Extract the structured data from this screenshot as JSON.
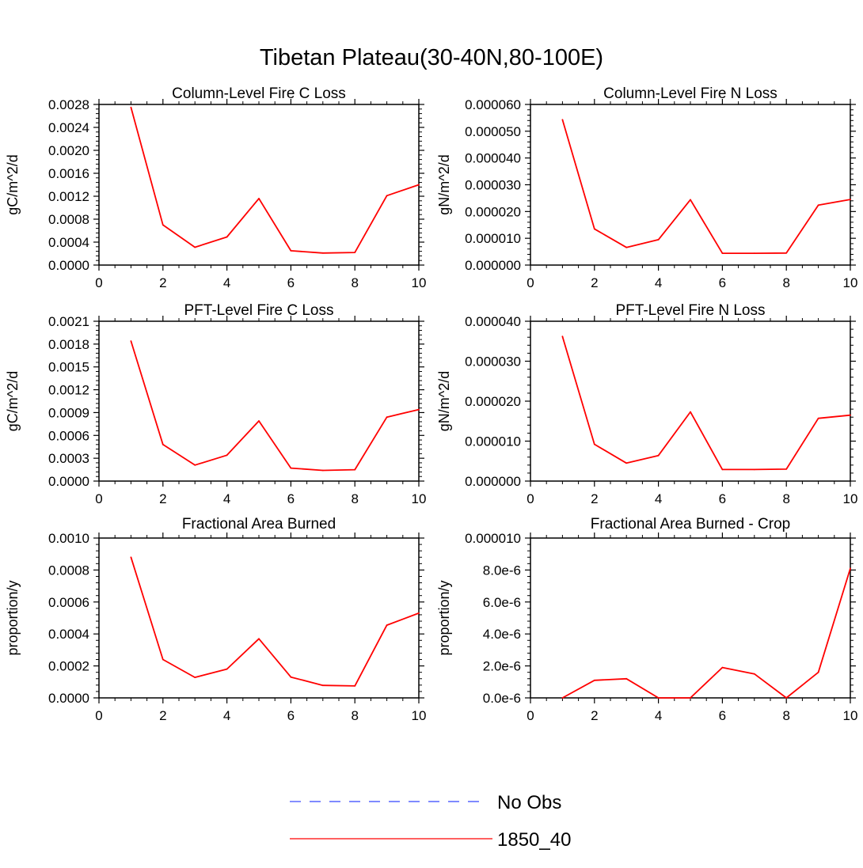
{
  "title": "Tibetan Plateau(30-40N,80-100E)",
  "legend": {
    "entries": [
      {
        "label": "No Obs",
        "color": "#3344ff",
        "style": "dashed"
      },
      {
        "label": "1850_40",
        "color": "#ff0000",
        "style": "solid"
      }
    ]
  },
  "chart_data": [
    {
      "type": "line",
      "title": "Column-Level Fire C Loss",
      "ylabel": "gC/m^2/d",
      "xlabel": "",
      "xlim": [
        0,
        10
      ],
      "ylim": [
        0,
        0.0028
      ],
      "x_ticks": [
        "0",
        "2",
        "4",
        "6",
        "8",
        "10"
      ],
      "y_ticks": [
        "0.0000",
        "0.0004",
        "0.0008",
        "0.0012",
        "0.0016",
        "0.0020",
        "0.0024",
        "0.0028"
      ],
      "series": [
        {
          "name": "1850_40",
          "color": "#ff0000",
          "x": [
            1,
            2,
            3,
            4,
            5,
            6,
            7,
            8,
            9,
            10
          ],
          "values": [
            0.00275,
            0.0007,
            0.00031,
            0.00049,
            0.00116,
            0.00025,
            0.00021,
            0.00022,
            0.00121,
            0.0014
          ]
        }
      ]
    },
    {
      "type": "line",
      "title": "Column-Level Fire N Loss",
      "ylabel": "gN/m^2/d",
      "xlabel": "",
      "xlim": [
        0,
        10
      ],
      "ylim": [
        0,
        6e-05
      ],
      "x_ticks": [
        "0",
        "2",
        "4",
        "6",
        "8",
        "10"
      ],
      "y_ticks": [
        "0.000000",
        "0.000010",
        "0.000020",
        "0.000030",
        "0.000040",
        "0.000050",
        "0.000060"
      ],
      "series": [
        {
          "name": "1850_40",
          "color": "#ff0000",
          "x": [
            1,
            2,
            3,
            4,
            5,
            6,
            7,
            8,
            9,
            10
          ],
          "values": [
            5.43e-05,
            1.35e-05,
            6.6e-06,
            9.5e-06,
            2.44e-05,
            4.4e-06,
            4.4e-06,
            4.5e-06,
            2.24e-05,
            2.45e-05
          ]
        }
      ]
    },
    {
      "type": "line",
      "title": "PFT-Level Fire C Loss",
      "ylabel": "gC/m^2/d",
      "xlabel": "",
      "xlim": [
        0,
        10
      ],
      "ylim": [
        0,
        0.0021
      ],
      "x_ticks": [
        "0",
        "2",
        "4",
        "6",
        "8",
        "10"
      ],
      "y_ticks": [
        "0.0000",
        "0.0003",
        "0.0006",
        "0.0009",
        "0.0012",
        "0.0015",
        "0.0018",
        "0.0021"
      ],
      "series": [
        {
          "name": "1850_40",
          "color": "#ff0000",
          "x": [
            1,
            2,
            3,
            4,
            5,
            6,
            7,
            8,
            9,
            10
          ],
          "values": [
            0.00184,
            0.00048,
            0.00021,
            0.00034,
            0.00079,
            0.00017,
            0.00014,
            0.00015,
            0.00084,
            0.00094
          ]
        }
      ]
    },
    {
      "type": "line",
      "title": "PFT-Level Fire N Loss",
      "ylabel": "gN/m^2/d",
      "xlabel": "",
      "xlim": [
        0,
        10
      ],
      "ylim": [
        0,
        4e-05
      ],
      "x_ticks": [
        "0",
        "2",
        "4",
        "6",
        "8",
        "10"
      ],
      "y_ticks": [
        "0.000000",
        "0.000010",
        "0.000020",
        "0.000030",
        "0.000040"
      ],
      "series": [
        {
          "name": "1850_40",
          "color": "#ff0000",
          "x": [
            1,
            2,
            3,
            4,
            5,
            6,
            7,
            8,
            9,
            10
          ],
          "values": [
            3.62e-05,
            9.2e-06,
            4.5e-06,
            6.4e-06,
            1.73e-05,
            2.9e-06,
            2.9e-06,
            3e-06,
            1.57e-05,
            1.65e-05
          ]
        }
      ]
    },
    {
      "type": "line",
      "title": "Fractional Area Burned",
      "ylabel": "proportion/y",
      "xlabel": "",
      "xlim": [
        0,
        10
      ],
      "ylim": [
        0,
        0.001
      ],
      "x_ticks": [
        "0",
        "2",
        "4",
        "6",
        "8",
        "10"
      ],
      "y_ticks": [
        "0.0000",
        "0.0002",
        "0.0004",
        "0.0006",
        "0.0008",
        "0.0010"
      ],
      "series": [
        {
          "name": "1850_40",
          "color": "#ff0000",
          "x": [
            1,
            2,
            3,
            4,
            5,
            6,
            7,
            8,
            9,
            10
          ],
          "values": [
            0.00088,
            0.00024,
            0.000128,
            0.00018,
            0.00037,
            0.00013,
            7.8e-05,
            7.5e-05,
            0.000455,
            0.00053
          ]
        }
      ]
    },
    {
      "type": "line",
      "title": "Fractional Area Burned - Crop",
      "ylabel": "proportion/y",
      "xlabel": "",
      "xlim": [
        0,
        10
      ],
      "ylim": [
        0,
        1e-05
      ],
      "x_ticks": [
        "0",
        "2",
        "4",
        "6",
        "8",
        "10"
      ],
      "y_ticks": [
        "0.0e-6",
        "2.0e-6",
        "4.0e-6",
        "6.0e-6",
        "8.0e-6",
        "0.000010"
      ],
      "series": [
        {
          "name": "1850_40",
          "color": "#ff0000",
          "x": [
            1,
            2,
            3,
            4,
            5,
            6,
            7,
            8,
            9,
            10
          ],
          "values": [
            0,
            1.1e-06,
            1.2e-06,
            0,
            0,
            1.9e-06,
            1.5e-06,
            0,
            1.6e-06,
            8.1e-06
          ]
        }
      ]
    }
  ]
}
